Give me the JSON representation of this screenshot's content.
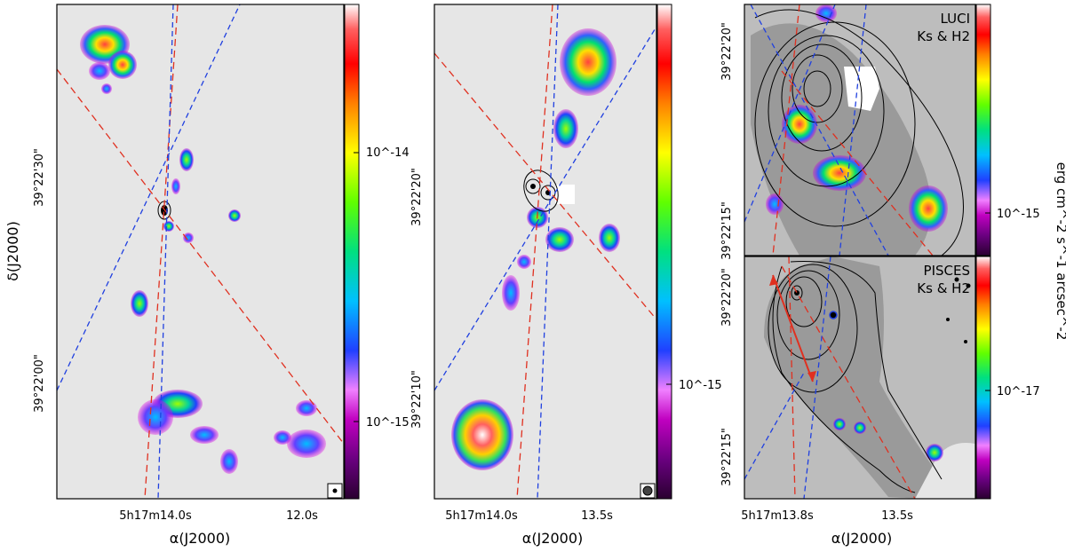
{
  "figure": {
    "panel1": {
      "y_axis_label": "δ(J2000)",
      "x_axis_label": "α(J2000)",
      "y_ticks": [
        "39°22'30\"",
        "39°22'00\""
      ],
      "x_ticks": [
        "5h17m14.0s",
        "12.0s"
      ],
      "colorbar_ticks": [
        "10^-14",
        "10^-15"
      ]
    },
    "panel2": {
      "x_axis_label": "α(J2000)",
      "y_ticks": [
        "39°22'20\"",
        "39°22'10\""
      ],
      "x_ticks": [
        "5h17m14.0s",
        "13.5s"
      ],
      "colorbar_ticks": [
        "10^-15"
      ]
    },
    "panel3_top": {
      "label_line1": "LUCI",
      "label_line2": "Ks & H2",
      "y_ticks": [
        "39°22'20\"",
        "39°22'15\""
      ],
      "colorbar_ticks": [
        "10^-15"
      ]
    },
    "panel3_bottom": {
      "label_line1": "PISCES",
      "label_line2": "Ks & H2",
      "y_ticks": [
        "39°22'20\"",
        "39°22'15\""
      ],
      "x_axis_label": "α(J2000)",
      "x_ticks": [
        "5h17m13.8s",
        "13.5s"
      ],
      "colorbar_ticks": [
        "10^-17"
      ]
    },
    "colorbar_unit": "erg cm^-2 s^-1 arcsec^-2",
    "colors": {
      "background": "#e6e6e6",
      "red_line": "#e03020",
      "blue_line": "#2040e0",
      "contour": "#000000"
    }
  }
}
